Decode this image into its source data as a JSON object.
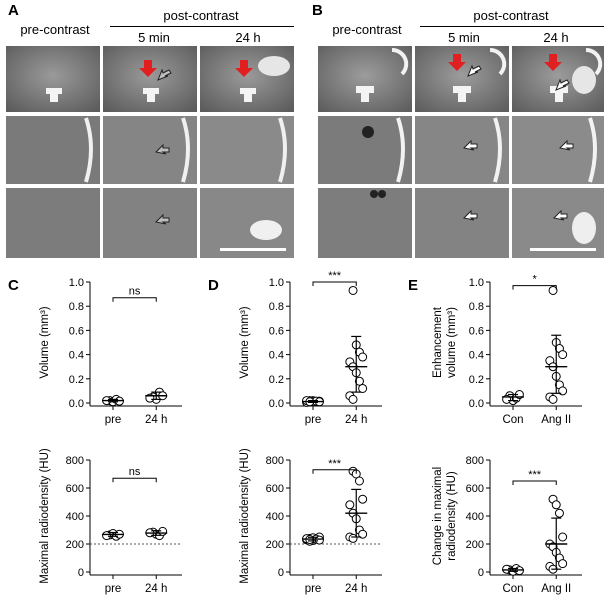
{
  "figure": {
    "panel_labels": {
      "A": "A",
      "B": "B",
      "C": "C",
      "D": "D",
      "E": "E"
    },
    "panel_A": {
      "pre_contrast": "pre-contrast",
      "post_contrast": "post-contrast",
      "time_5min": "5 min",
      "time_24h": "24 h"
    },
    "panel_B": {
      "pre_contrast": "pre-contrast",
      "post_contrast": "post-contrast",
      "time_5min": "5 min",
      "time_24h": "24 h"
    }
  },
  "chart_data": [
    {
      "id": "C_top",
      "type": "scatter",
      "categories": [
        "pre",
        "24 h"
      ],
      "ylabel": "Volume (mm³)",
      "ylim": [
        0,
        1.0
      ],
      "yticks": [
        "0.0",
        "0.2",
        "0.4",
        "0.6",
        "0.8",
        "1.0"
      ],
      "yticks_v": [
        0,
        0.2,
        0.4,
        0.6,
        0.8,
        1.0
      ],
      "points": [
        [
          0,
          0.02
        ],
        [
          0,
          0.01
        ],
        [
          0,
          0.03
        ],
        [
          0,
          0.015
        ],
        [
          0,
          0.02
        ],
        [
          1,
          0.05
        ],
        [
          1,
          0.03
        ],
        [
          1,
          0.09
        ],
        [
          1,
          0.06
        ],
        [
          1,
          0.04
        ]
      ],
      "error": [
        {
          "x": 0,
          "mean": 0.02,
          "lo": 0.01,
          "hi": 0.03
        },
        {
          "x": 1,
          "mean": 0.06,
          "lo": 0.03,
          "hi": 0.09
        }
      ],
      "sig": {
        "label": "ns",
        "y": 0.87
      }
    },
    {
      "id": "C_bot",
      "type": "scatter",
      "categories": [
        "pre",
        "24 h"
      ],
      "ylabel": "Maximal radiodensity (HU)",
      "ylim": [
        0,
        800
      ],
      "yticks": [
        "0",
        "200",
        "400",
        "600",
        "800"
      ],
      "yticks_v": [
        0,
        200,
        400,
        600,
        800
      ],
      "refline": 200,
      "points": [
        [
          0,
          265
        ],
        [
          0,
          275
        ],
        [
          0,
          255
        ],
        [
          0,
          270
        ],
        [
          0,
          260
        ],
        [
          1,
          285
        ],
        [
          1,
          270
        ],
        [
          1,
          260
        ],
        [
          1,
          290
        ],
        [
          1,
          280
        ]
      ],
      "error": [
        {
          "x": 0,
          "mean": 268,
          "lo": 255,
          "hi": 282
        },
        {
          "x": 1,
          "mean": 278,
          "lo": 262,
          "hi": 294
        }
      ],
      "sig": {
        "label": "ns",
        "y": 670
      }
    },
    {
      "id": "D_top",
      "type": "scatter",
      "categories": [
        "pre",
        "24 h"
      ],
      "ylabel": "Volume (mm³)",
      "ylim": [
        0,
        1.0
      ],
      "yticks": [
        "0.0",
        "0.2",
        "0.4",
        "0.6",
        "0.8",
        "1.0"
      ],
      "yticks_v": [
        0,
        0.2,
        0.4,
        0.6,
        0.8,
        1.0
      ],
      "points": [
        [
          0,
          0.01
        ],
        [
          0,
          0.02
        ],
        [
          0,
          0.01
        ],
        [
          0,
          0.015
        ],
        [
          0,
          0.005
        ],
        [
          0,
          0.02
        ],
        [
          0,
          0.01
        ],
        [
          0,
          0.015
        ],
        [
          0,
          0.01
        ],
        [
          0,
          0.02
        ],
        [
          0,
          0.01
        ],
        [
          1,
          0.93
        ],
        [
          1,
          0.48
        ],
        [
          1,
          0.42
        ],
        [
          1,
          0.38
        ],
        [
          1,
          0.34
        ],
        [
          1,
          0.3
        ],
        [
          1,
          0.25
        ],
        [
          1,
          0.18
        ],
        [
          1,
          0.12
        ],
        [
          1,
          0.06
        ],
        [
          1,
          0.03
        ]
      ],
      "error": [
        {
          "x": 0,
          "mean": 0.012,
          "lo": 0.005,
          "hi": 0.02
        },
        {
          "x": 1,
          "mean": 0.3,
          "lo": 0.09,
          "hi": 0.55
        }
      ],
      "sig": {
        "label": "***",
        "y": 1.0
      }
    },
    {
      "id": "D_bot",
      "type": "scatter",
      "categories": [
        "pre",
        "24 h"
      ],
      "ylabel": "Maximal radiodensity (HU)",
      "ylim": [
        0,
        800
      ],
      "yticks": [
        "0",
        "200",
        "400",
        "600",
        "800"
      ],
      "yticks_v": [
        0,
        200,
        400,
        600,
        800
      ],
      "refline": 200,
      "points": [
        [
          0,
          240
        ],
        [
          0,
          225
        ],
        [
          0,
          235
        ],
        [
          0,
          250
        ],
        [
          0,
          230
        ],
        [
          0,
          220
        ],
        [
          0,
          245
        ],
        [
          0,
          235
        ],
        [
          0,
          228
        ],
        [
          0,
          238
        ],
        [
          0,
          232
        ],
        [
          1,
          720
        ],
        [
          1,
          700
        ],
        [
          1,
          650
        ],
        [
          1,
          520
        ],
        [
          1,
          480
        ],
        [
          1,
          420
        ],
        [
          1,
          380
        ],
        [
          1,
          300
        ],
        [
          1,
          270
        ],
        [
          1,
          250
        ],
        [
          1,
          240
        ]
      ],
      "error": [
        {
          "x": 0,
          "mean": 235,
          "lo": 222,
          "hi": 248
        },
        {
          "x": 1,
          "mean": 420,
          "lo": 250,
          "hi": 590
        }
      ],
      "sig": {
        "label": "***",
        "y": 730
      }
    },
    {
      "id": "E_top",
      "type": "scatter",
      "categories": [
        "Con",
        "Ang II"
      ],
      "ylabel": "Enhancement volume (mm³)",
      "ylim": [
        0,
        1.0
      ],
      "yticks": [
        "0.0",
        "0.2",
        "0.4",
        "0.6",
        "0.8",
        "1.0"
      ],
      "yticks_v": [
        0,
        0.2,
        0.4,
        0.6,
        0.8,
        1.0
      ],
      "points": [
        [
          0,
          0.06
        ],
        [
          0,
          0.02
        ],
        [
          0,
          0.04
        ],
        [
          0,
          0.07
        ],
        [
          0,
          0.03
        ],
        [
          1,
          0.93
        ],
        [
          1,
          0.5
        ],
        [
          1,
          0.45
        ],
        [
          1,
          0.4
        ],
        [
          1,
          0.35
        ],
        [
          1,
          0.3
        ],
        [
          1,
          0.22
        ],
        [
          1,
          0.15
        ],
        [
          1,
          0.1
        ],
        [
          1,
          0.05
        ],
        [
          1,
          0.03
        ]
      ],
      "error": [
        {
          "x": 0,
          "mean": 0.05,
          "lo": 0.02,
          "hi": 0.07
        },
        {
          "x": 1,
          "mean": 0.3,
          "lo": 0.08,
          "hi": 0.56
        }
      ],
      "sig": {
        "label": "*",
        "y": 0.97
      }
    },
    {
      "id": "E_bot",
      "type": "scatter",
      "categories": [
        "Con",
        "Ang II"
      ],
      "ylabel": "Change in maximal radiodensity (HU)",
      "ylim": [
        0,
        800
      ],
      "yticks": [
        "0",
        "200",
        "400",
        "600",
        "800"
      ],
      "yticks_v": [
        0,
        200,
        400,
        600,
        800
      ],
      "points": [
        [
          0,
          15
        ],
        [
          0,
          5
        ],
        [
          0,
          25
        ],
        [
          0,
          10
        ],
        [
          0,
          20
        ],
        [
          1,
          520
        ],
        [
          1,
          480
        ],
        [
          1,
          420
        ],
        [
          1,
          250
        ],
        [
          1,
          200
        ],
        [
          1,
          180
        ],
        [
          1,
          140
        ],
        [
          1,
          100
        ],
        [
          1,
          60
        ],
        [
          1,
          40
        ],
        [
          1,
          20
        ]
      ],
      "error": [
        {
          "x": 0,
          "mean": 15,
          "lo": 5,
          "hi": 25
        },
        {
          "x": 1,
          "mean": 200,
          "lo": 20,
          "hi": 385
        }
      ],
      "sig": {
        "label": "***",
        "y": 650
      }
    }
  ]
}
